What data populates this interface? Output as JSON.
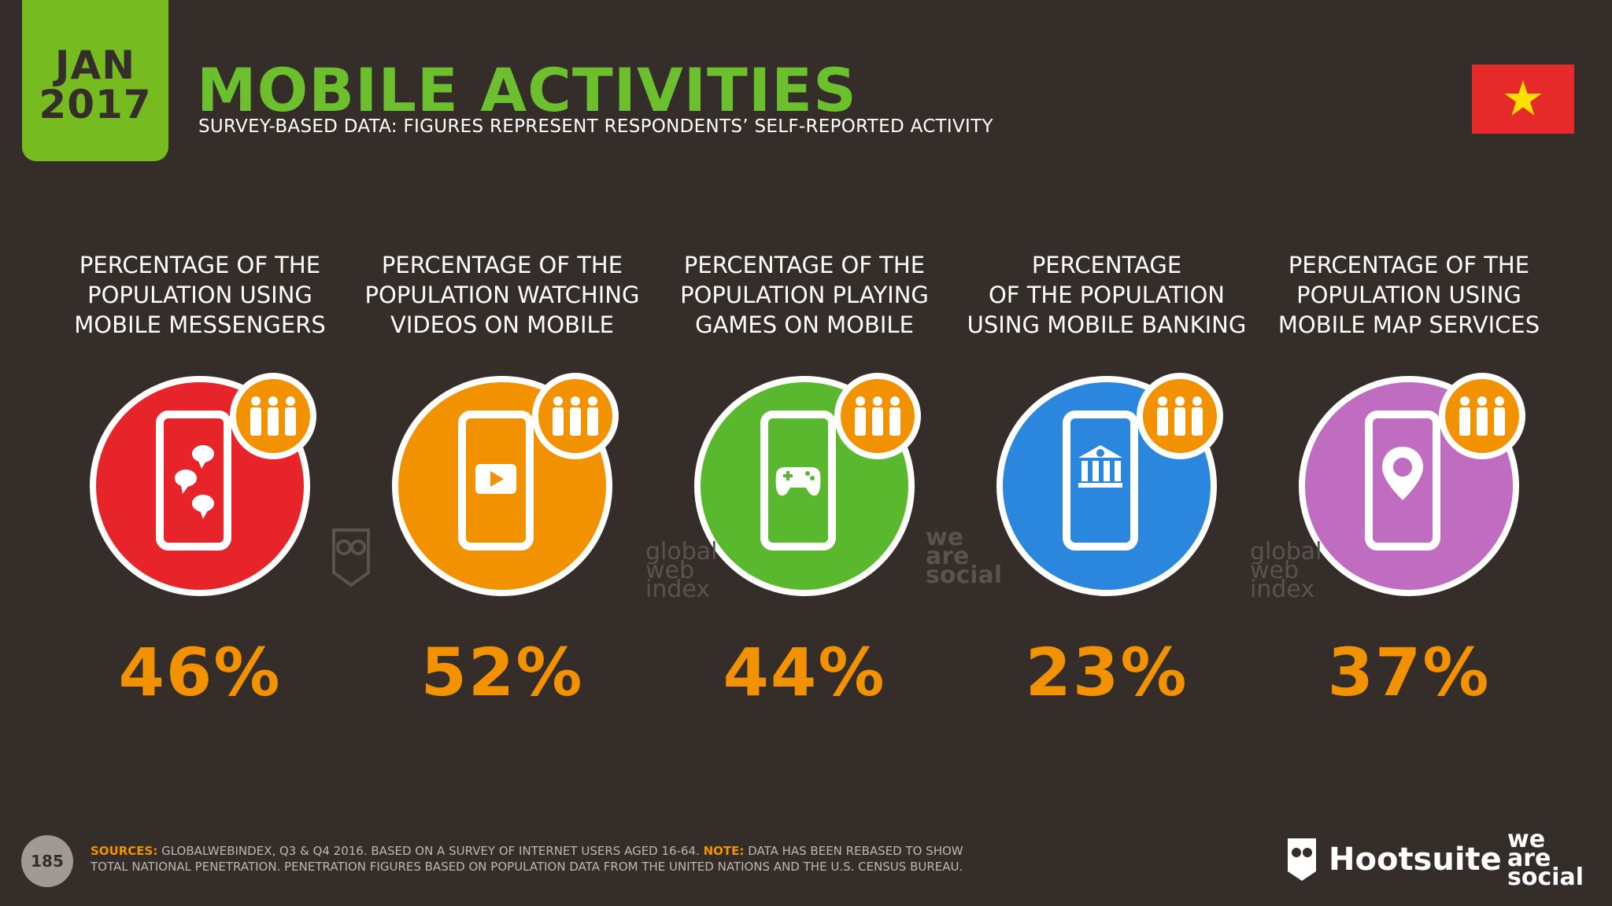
{
  "header": {
    "date_month": "JAN",
    "date_year": "2017",
    "title": "MOBILE ACTIVITIES",
    "subtitle": "SURVEY-BASED DATA: FIGURES REPRESENT RESPONDENTS’ SELF-REPORTED ACTIVITY"
  },
  "colors": {
    "background": "#342d2a",
    "accent_green": "#6cbf2d",
    "value_orange": "#f39200",
    "flag_red": "#e62a2a",
    "flag_star": "#ffde00"
  },
  "activities": [
    {
      "label": "PERCENTAGE OF THE\nPOPULATION USING\nMOBILE MESSENGERS",
      "value": "46%",
      "color": "#e8242b",
      "icon": "chat-bubbles-icon"
    },
    {
      "label": "PERCENTAGE OF THE\nPOPULATION WATCHING\nVIDEOS ON MOBILE",
      "value": "52%",
      "color": "#f39200",
      "icon": "play-video-icon"
    },
    {
      "label": "PERCENTAGE OF THE\nPOPULATION PLAYING\nGAMES ON MOBILE",
      "value": "44%",
      "color": "#5ab82e",
      "icon": "gamepad-icon"
    },
    {
      "label": "PERCENTAGE\nOF THE POPULATION\nUSING MOBILE BANKING",
      "value": "23%",
      "color": "#2b86de",
      "icon": "bank-icon"
    },
    {
      "label": "PERCENTAGE OF THE\nPOPULATION USING\nMOBILE MAP SERVICES",
      "value": "37%",
      "color": "#c06cc1",
      "icon": "map-pin-icon"
    }
  ],
  "footer": {
    "page_number": "185",
    "sources_label": "SOURCES:",
    "sources_text": " GLOBALWEBINDEX, Q3 & Q4 2016. BASED ON A SURVEY OF INTERNET USERS AGED 16-64. ",
    "note_label": "NOTE:",
    "note_text": " DATA HAS BEEN REBASED TO SHOW TOTAL NATIONAL PENETRATION. PENETRATION FIGURES BASED ON POPULATION DATA FROM THE UNITED NATIONS AND THE U.S. CENSUS BUREAU.",
    "hootsuite": "Hootsuite",
    "we_are_social": "we\nare\nsocial"
  },
  "watermarks": {
    "gwi": "global\nweb\nindex",
    "was": "we\nare\nsocial"
  }
}
